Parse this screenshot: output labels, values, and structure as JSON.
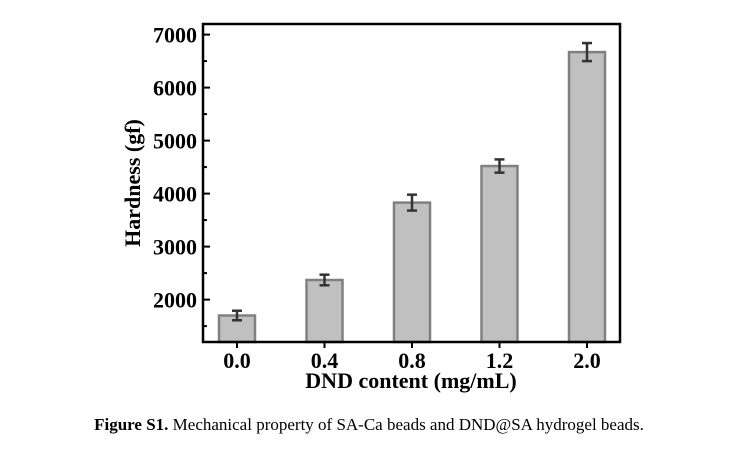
{
  "chart_data": {
    "type": "bar",
    "categories": [
      "0.0",
      "0.4",
      "0.8",
      "1.2",
      "2.0"
    ],
    "values": [
      1700,
      2370,
      3830,
      4520,
      6670
    ],
    "errors": [
      90,
      100,
      150,
      125,
      170
    ],
    "xlabel": "DND content (mg/mL)",
    "ylabel": "Hardness (gf)",
    "ylim": [
      1200,
      7200
    ],
    "yticks": [
      2000,
      3000,
      4000,
      5000,
      6000,
      7000
    ],
    "grid": false,
    "colors": {
      "bar_fill": "#c0c0c0",
      "bar_edge": "#808080",
      "error": "#333333"
    }
  },
  "caption": {
    "label": "Figure S1.",
    "text": " Mechanical property of SA-Ca beads and DND@SA hydrogel beads."
  }
}
